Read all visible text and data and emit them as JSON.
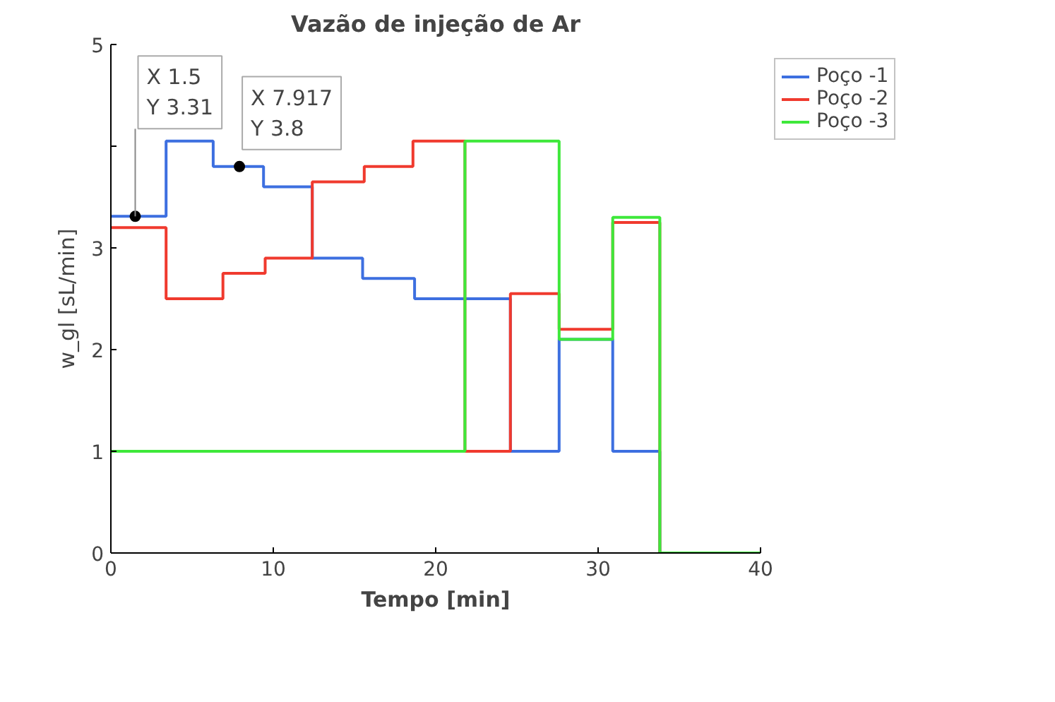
{
  "chart_data": {
    "type": "step",
    "title": "Vazão de injeção de Ar",
    "xlabel": "Tempo [min]",
    "ylabel": "w_gl [sL/min]",
    "xlim": [
      0,
      40
    ],
    "xticks": [
      0,
      10,
      20,
      30,
      40
    ],
    "ylim": [
      0,
      5
    ],
    "yticks": [
      0,
      1,
      2,
      3,
      {
        "value": 4,
        "label": null
      },
      5
    ],
    "grid": false,
    "legend": "top right",
    "line_style": "solid",
    "series": [
      {
        "name": "Poço -1",
        "color": "#3d6fe0",
        "x": [
          0,
          3.4,
          6.3,
          9.4,
          12.4,
          15.5,
          18.7,
          24.6,
          27.6,
          30.9,
          33.8,
          40
        ],
        "values": [
          3.31,
          4.05,
          3.8,
          3.6,
          2.9,
          2.7,
          2.5,
          1.0,
          2.1,
          1.0,
          0,
          0
        ]
      },
      {
        "name": "Poço -2",
        "color": "#f03a2e",
        "x": [
          0,
          3.4,
          6.9,
          9.5,
          12.4,
          15.6,
          18.6,
          21.8,
          24.6,
          27.6,
          30.9,
          33.8,
          40
        ],
        "values": [
          3.2,
          2.5,
          2.75,
          2.9,
          3.65,
          3.8,
          4.05,
          1.0,
          2.55,
          2.2,
          3.25,
          0,
          0
        ]
      },
      {
        "name": "Poço -3",
        "color": "#3ee83a",
        "x": [
          0,
          21.8,
          27.6,
          30.9,
          33.8,
          40
        ],
        "values": [
          1.0,
          4.05,
          2.1,
          3.3,
          0,
          0
        ]
      }
    ],
    "annotations": [
      {
        "text": "X 1.5\nY 3.31",
        "x": 1.5,
        "y": 3.31
      },
      {
        "text": "X 7.917\nY 3.8",
        "x": 7.917,
        "y": 3.8
      }
    ]
  }
}
